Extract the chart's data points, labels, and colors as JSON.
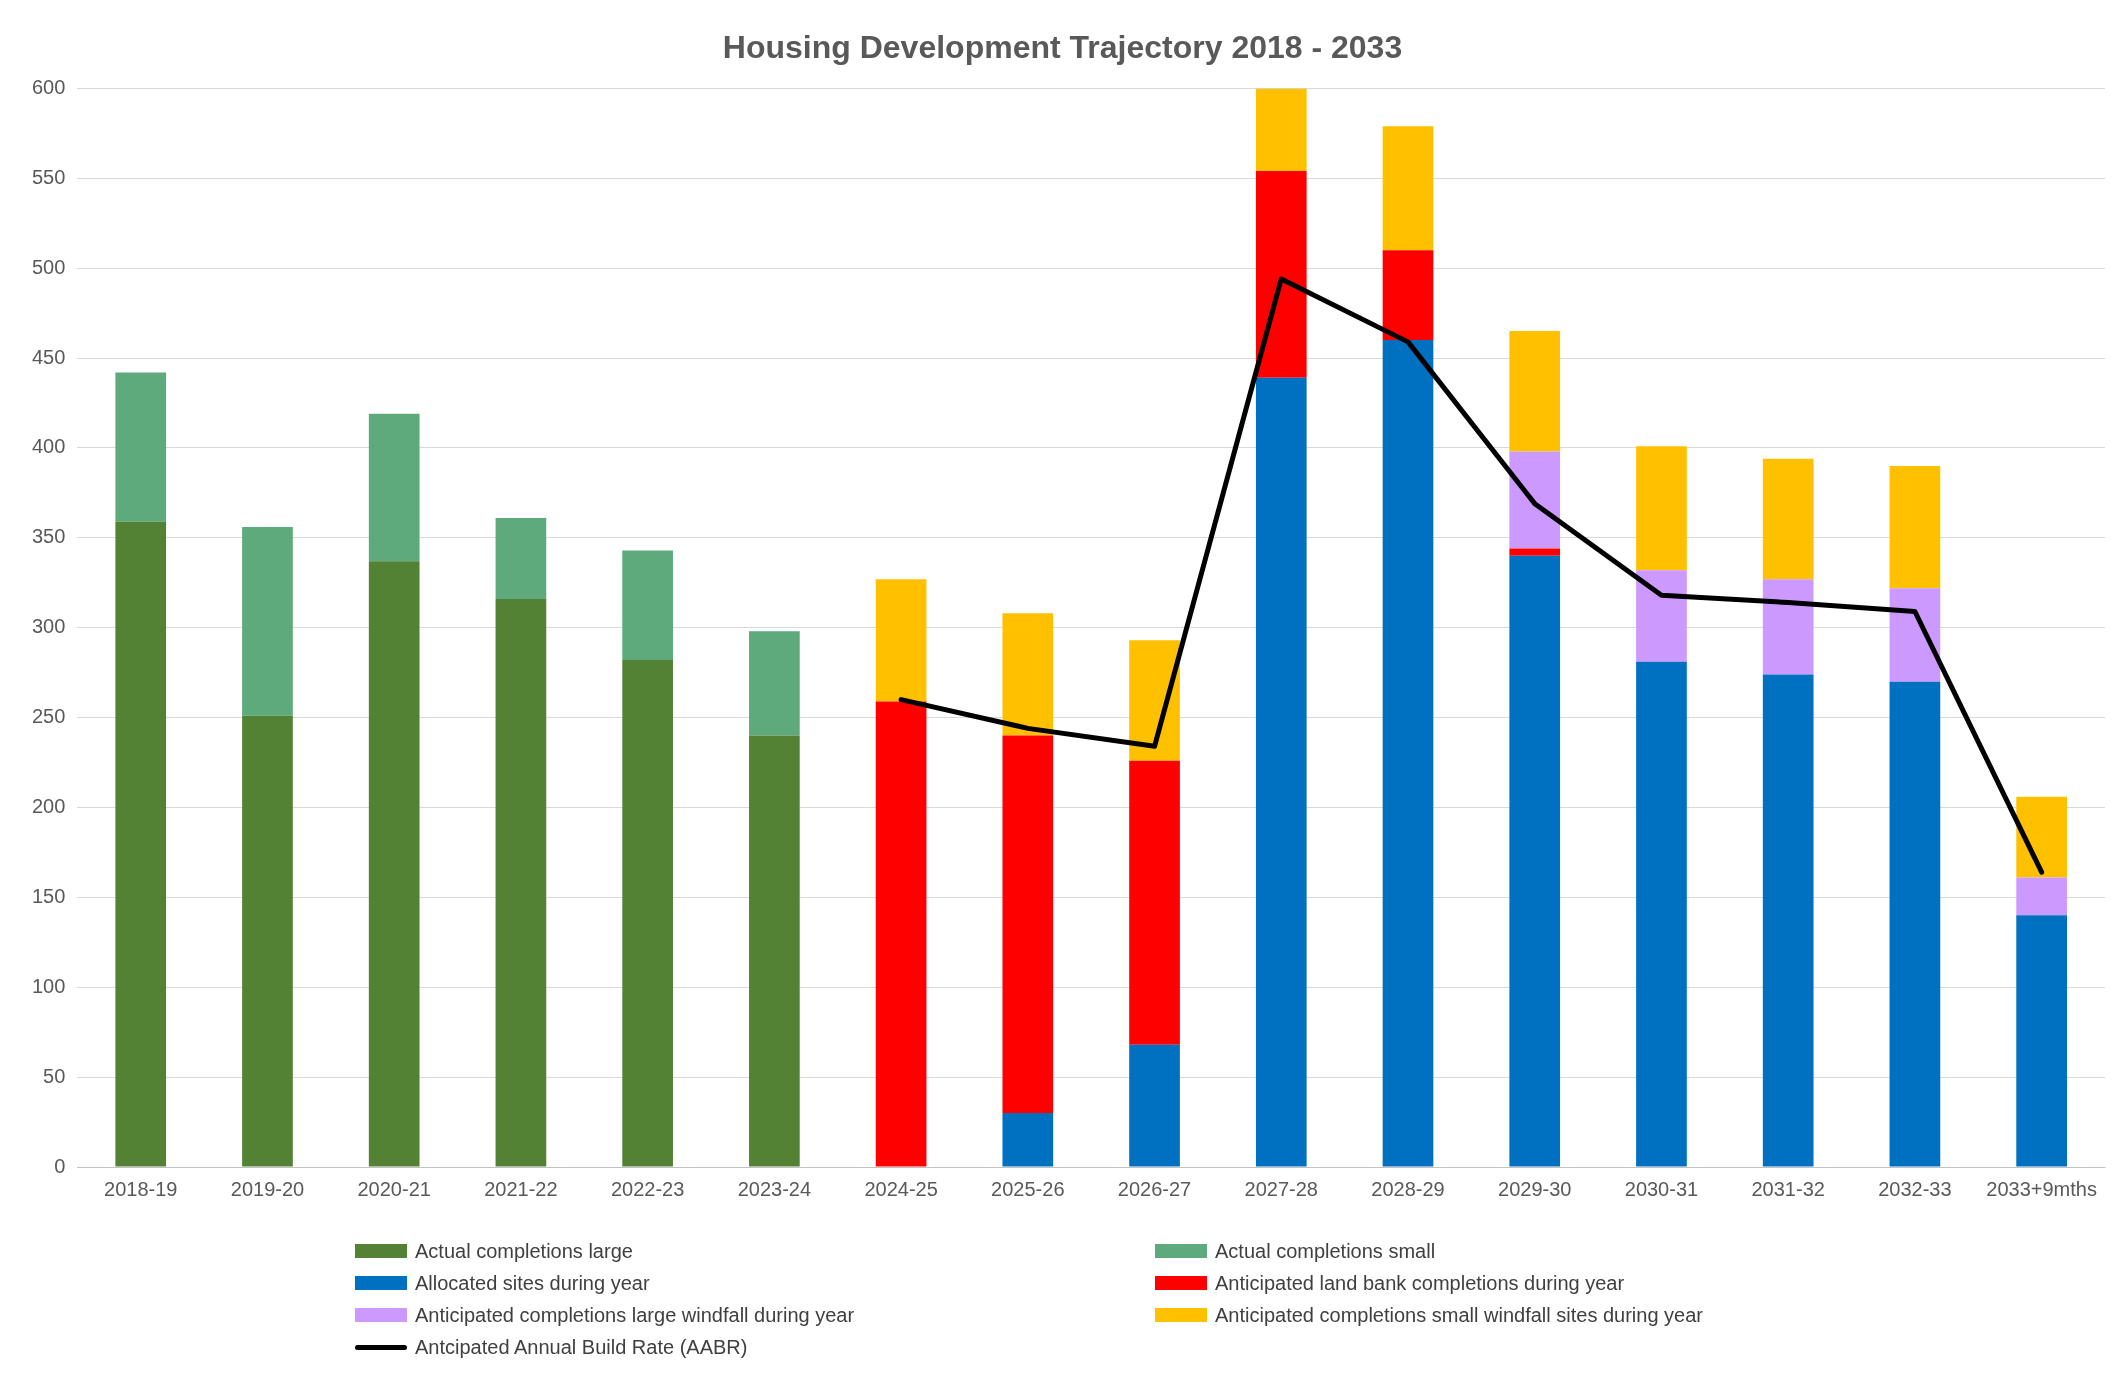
{
  "chart_data": {
    "type": "bar",
    "title": "Housing Development Trajectory 2018 - 2033",
    "categories": [
      "2018-19",
      "2019-20",
      "2020-21",
      "2021-22",
      "2022-23",
      "2023-24",
      "2024-25",
      "2025-26",
      "2026-27",
      "2027-28",
      "2028-29",
      "2029-30",
      "2030-31",
      "2031-32",
      "2032-33",
      "2033+9mths"
    ],
    "stacked": true,
    "series": [
      {
        "name": "Actual completions large",
        "color": "#548235",
        "values": [
          359,
          251,
          337,
          316,
          282,
          240,
          null,
          null,
          null,
          null,
          null,
          null,
          null,
          null,
          null,
          null
        ]
      },
      {
        "name": "Actual completions small",
        "color": "#5eaa7d",
        "values": [
          83,
          105,
          82,
          45,
          61,
          58,
          null,
          null,
          null,
          null,
          null,
          null,
          null,
          null,
          null,
          null
        ]
      },
      {
        "name": "Allocated sites during year",
        "color": "#0070c0",
        "values": [
          null,
          null,
          null,
          null,
          null,
          null,
          null,
          30,
          68,
          439,
          460,
          340,
          281,
          274,
          270,
          140
        ]
      },
      {
        "name": "Anticipated land bank completions during year",
        "color": "#ff0000",
        "values": [
          null,
          null,
          null,
          null,
          null,
          null,
          259,
          210,
          158,
          115,
          50,
          4,
          null,
          null,
          null,
          null
        ]
      },
      {
        "name": "Anticipated completions large windfall during year",
        "color": "#cc99ff",
        "values": [
          null,
          null,
          null,
          null,
          null,
          null,
          null,
          null,
          null,
          null,
          null,
          54,
          51,
          53,
          52,
          21
        ]
      },
      {
        "name": "Anticipated completions small windfall sites during year",
        "color": "#ffc000",
        "values": [
          null,
          null,
          null,
          null,
          null,
          null,
          68,
          68,
          67,
          46,
          69,
          67,
          69,
          67,
          68,
          45
        ]
      },
      {
        "name": "Antcipated Annual Build Rate (AABR)",
        "type": "line",
        "color": "#000000",
        "marker": "none",
        "values": [
          null,
          null,
          null,
          null,
          null,
          null,
          260,
          244,
          234,
          494,
          459,
          369,
          318,
          314,
          309,
          164
        ]
      }
    ],
    "ylim": [
      0,
      600
    ],
    "yticks": [
      0,
      50,
      100,
      150,
      200,
      250,
      300,
      350,
      400,
      450,
      500,
      550,
      600
    ],
    "grid": "y",
    "legend": "bottom"
  }
}
